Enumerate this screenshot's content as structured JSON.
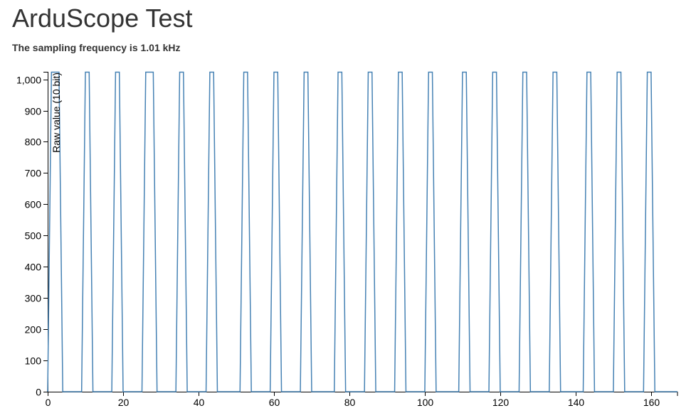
{
  "page": {
    "title": "ArduScope Test",
    "subtitle": "The sampling frequency is 1.01 kHz"
  },
  "chart_data": {
    "type": "line",
    "title": "",
    "xlabel": "",
    "ylabel": "Raw value (10 bit)",
    "xlim": [
      0,
      167
    ],
    "ylim": [
      0,
      1023
    ],
    "grid": false,
    "legend": "none",
    "series_color": "#4682b4",
    "x_ticks": [
      0,
      20,
      40,
      60,
      80,
      100,
      120,
      140,
      160
    ],
    "x_tick_labels": [
      "0",
      "20",
      "40",
      "60",
      "80",
      "100",
      "120",
      "140",
      "160"
    ],
    "y_ticks": [
      0,
      100,
      200,
      300,
      400,
      500,
      600,
      700,
      800,
      900,
      1000
    ],
    "y_tick_labels": [
      "0",
      "100",
      "200",
      "300",
      "400",
      "500",
      "600",
      "700",
      "800",
      "900",
      "1,000"
    ],
    "series": [
      {
        "x": [
          0,
          1,
          3,
          4,
          9,
          10,
          11,
          12,
          17,
          18,
          19,
          20,
          25,
          26,
          28,
          29,
          34,
          35,
          36,
          37,
          42,
          43,
          44,
          45,
          51,
          52,
          53,
          54,
          59,
          60,
          61,
          62,
          67,
          68,
          69,
          70,
          76,
          77,
          78,
          79,
          84,
          85,
          86,
          87,
          92,
          93,
          94,
          95,
          100,
          101,
          102,
          103,
          109,
          110,
          111,
          112,
          117,
          118,
          119,
          120,
          125,
          126,
          127,
          128,
          133,
          134,
          135,
          136,
          142,
          143,
          144,
          145,
          150,
          151,
          152,
          153,
          158,
          159,
          160,
          161,
          167
        ],
        "values": [
          0,
          1023,
          1023,
          0,
          0,
          1023,
          1023,
          0,
          0,
          1023,
          1023,
          0,
          0,
          1023,
          1023,
          0,
          0,
          1023,
          1023,
          0,
          0,
          1023,
          1023,
          0,
          0,
          1023,
          1023,
          0,
          0,
          1023,
          1023,
          0,
          0,
          1023,
          1023,
          0,
          0,
          1023,
          1023,
          0,
          0,
          1023,
          1023,
          0,
          0,
          1023,
          1023,
          0,
          0,
          1023,
          1023,
          0,
          0,
          1023,
          1023,
          0,
          0,
          1023,
          1023,
          0,
          0,
          1023,
          1023,
          0,
          0,
          1023,
          1023,
          0,
          0,
          1023,
          1023,
          0,
          0,
          1023,
          1023,
          0,
          0,
          1023,
          1023,
          0,
          0
        ]
      }
    ]
  }
}
